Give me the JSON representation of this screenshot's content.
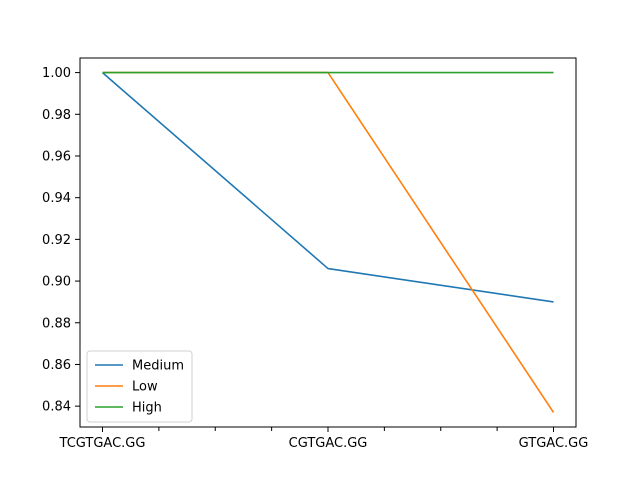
{
  "chart_data": {
    "type": "line",
    "title": "",
    "xlabel": "",
    "ylabel": "",
    "categories": [
      "TCGTGAC.GG",
      "CGTGAC.GG",
      "GTGAC.GG"
    ],
    "ylim": [
      0.83,
      1.007
    ],
    "yticks": [
      0.84,
      0.86,
      0.88,
      0.9,
      0.92,
      0.94,
      0.96,
      0.98,
      1.0
    ],
    "ytick_labels": [
      "0.84",
      "0.86",
      "0.88",
      "0.90",
      "0.92",
      "0.94",
      "0.96",
      "0.98",
      "1.00"
    ],
    "xminor_ticks": [
      0.25,
      0.5,
      0.75,
      1.25,
      1.5,
      1.75
    ],
    "grid": false,
    "legend_position": "lower-left",
    "series": [
      {
        "name": "Medium",
        "color": "#1f77b4",
        "values": [
          1.0,
          0.906,
          0.89
        ]
      },
      {
        "name": "Low",
        "color": "#ff7f0e",
        "values": [
          1.0,
          1.0,
          0.837
        ]
      },
      {
        "name": "High",
        "color": "#2ca02c",
        "values": [
          1.0,
          1.0,
          1.0
        ]
      }
    ]
  }
}
